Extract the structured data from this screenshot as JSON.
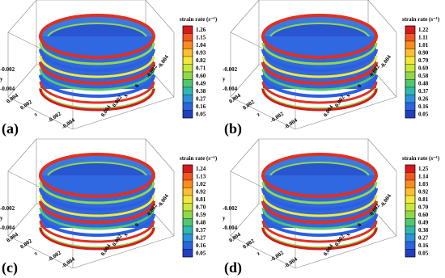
{
  "panels": [
    {
      "label": "(a)",
      "colorbar_title": "strain rate (s⁻¹)",
      "ticks": [
        "1.26",
        "1.15",
        "1.04",
        "0.93",
        "0.82",
        "0.71",
        "0.60",
        "0.49",
        "0.38",
        "0.27",
        "0.16",
        "0.05"
      ],
      "y_axis": [
        "-0.002",
        "y",
        "-0.004"
      ],
      "z_axis": [
        "0.004",
        "0.002",
        "z",
        "-0.002",
        "-0.004"
      ],
      "x_axis": [
        "-0.004",
        "-0.002",
        "0",
        "x",
        "0.002",
        "0.004"
      ]
    },
    {
      "label": "(b)",
      "colorbar_title": "strain rate (s⁻¹)",
      "ticks": [
        "1.22",
        "1.11",
        "1.01",
        "0.90",
        "0.79",
        "0.69",
        "0.58",
        "0.48",
        "0.37",
        "0.26",
        "0.16",
        "0.05"
      ],
      "y_axis": [
        "-0.002",
        "y",
        "-0.004"
      ],
      "z_axis": [
        "0.004",
        "0.002",
        "z",
        "-0.002",
        "-0.004"
      ],
      "x_axis": [
        "-0.004",
        "-0.002",
        "0",
        "x",
        "0.002",
        "0.004"
      ]
    },
    {
      "label": "(c)",
      "colorbar_title": "strain rate (s⁻¹)",
      "ticks": [
        "1.24",
        "1.13",
        "1.02",
        "0.92",
        "0.81",
        "0.70",
        "0.59",
        "0.48",
        "0.37",
        "0.27",
        "0.16",
        "0.05"
      ],
      "y_axis": [
        "-0.002",
        "y",
        "-0.004"
      ],
      "z_axis": [
        "0.004",
        "0.002",
        "z",
        "-0.002",
        "-0.004"
      ],
      "x_axis": [
        "-0.004",
        "-0.002",
        "0",
        "x",
        "0.002",
        "0.004"
      ]
    },
    {
      "label": "(d)",
      "colorbar_title": "strain rate (s⁻¹)",
      "ticks": [
        "1.25",
        "1.14",
        "1.03",
        "0.92",
        "0.81",
        "0.70",
        "0.60",
        "0.49",
        "0.38",
        "0.27",
        "0.16",
        "0.05"
      ],
      "y_axis": [
        "-0.002",
        "y",
        "-0.004"
      ],
      "z_axis": [
        "0.004",
        "0.002",
        "z",
        "-0.002",
        "-0.004"
      ],
      "x_axis": [
        "-0.004",
        "-0.002",
        "0",
        "x",
        "0.002",
        "0.004"
      ]
    }
  ]
}
